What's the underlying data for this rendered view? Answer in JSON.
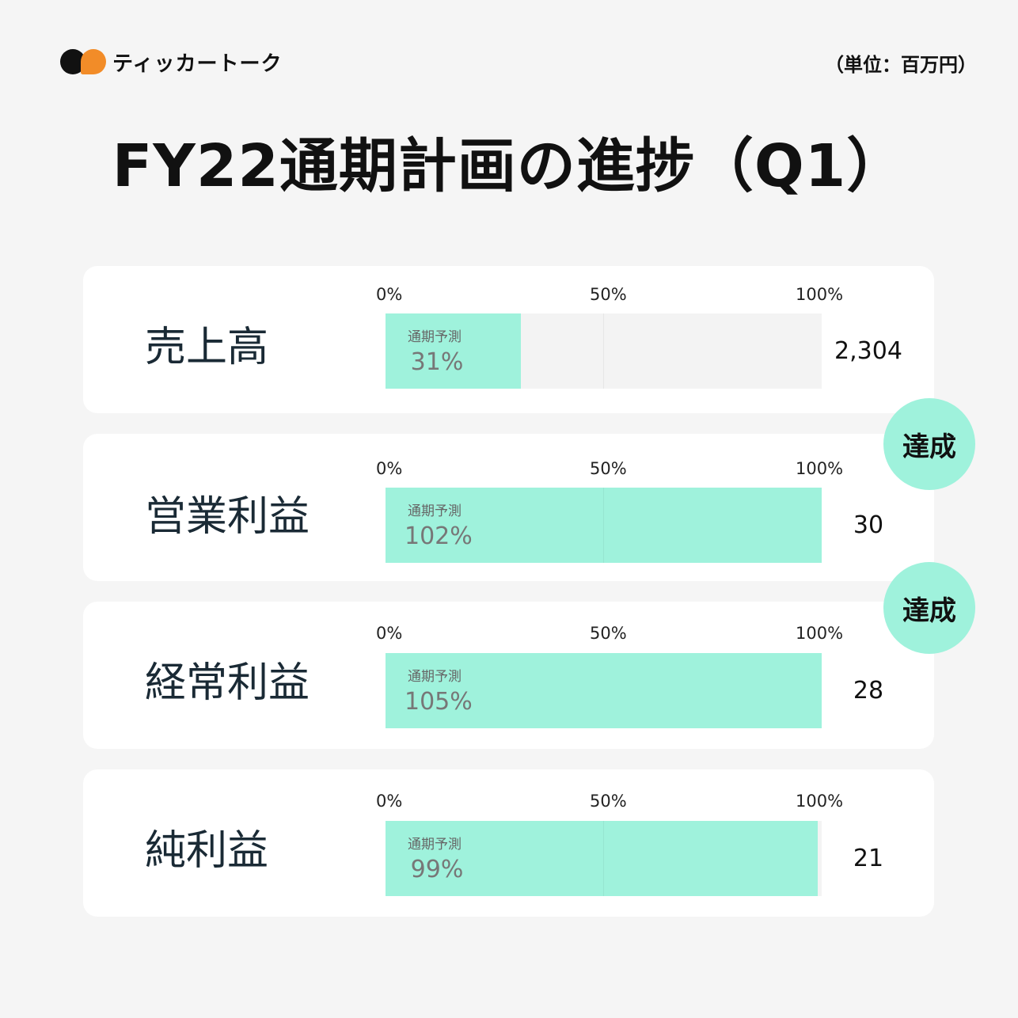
{
  "brand": {
    "name": "ティッカートーク",
    "colors": {
      "black": "#111111",
      "orange": "#f28c28"
    }
  },
  "unit_label": "（単位：百万円）",
  "title": "FY22通期計画の進捗（Q1）",
  "accent_color": "#9ff2dc",
  "chart_data": {
    "type": "bar",
    "orientation": "horizontal",
    "title": "FY22通期計画の進捗（Q1）",
    "unit": "（単位：百万円）",
    "axis_ticks": [
      "0%",
      "50%",
      "100%"
    ],
    "xlim": [
      0,
      100
    ],
    "bar_caption": "通期予測",
    "rows": [
      {
        "label": "売上高",
        "progress_pct": 31,
        "progress_text": "31%",
        "value": "2,304",
        "badge": ""
      },
      {
        "label": "営業利益",
        "progress_pct": 102,
        "progress_text": "102%",
        "value": "30",
        "badge": "達成"
      },
      {
        "label": "経常利益",
        "progress_pct": 105,
        "progress_text": "105%",
        "value": "28",
        "badge": "達成"
      },
      {
        "label": "純利益",
        "progress_pct": 99,
        "progress_text": "99%",
        "value": "21",
        "badge": ""
      }
    ]
  }
}
